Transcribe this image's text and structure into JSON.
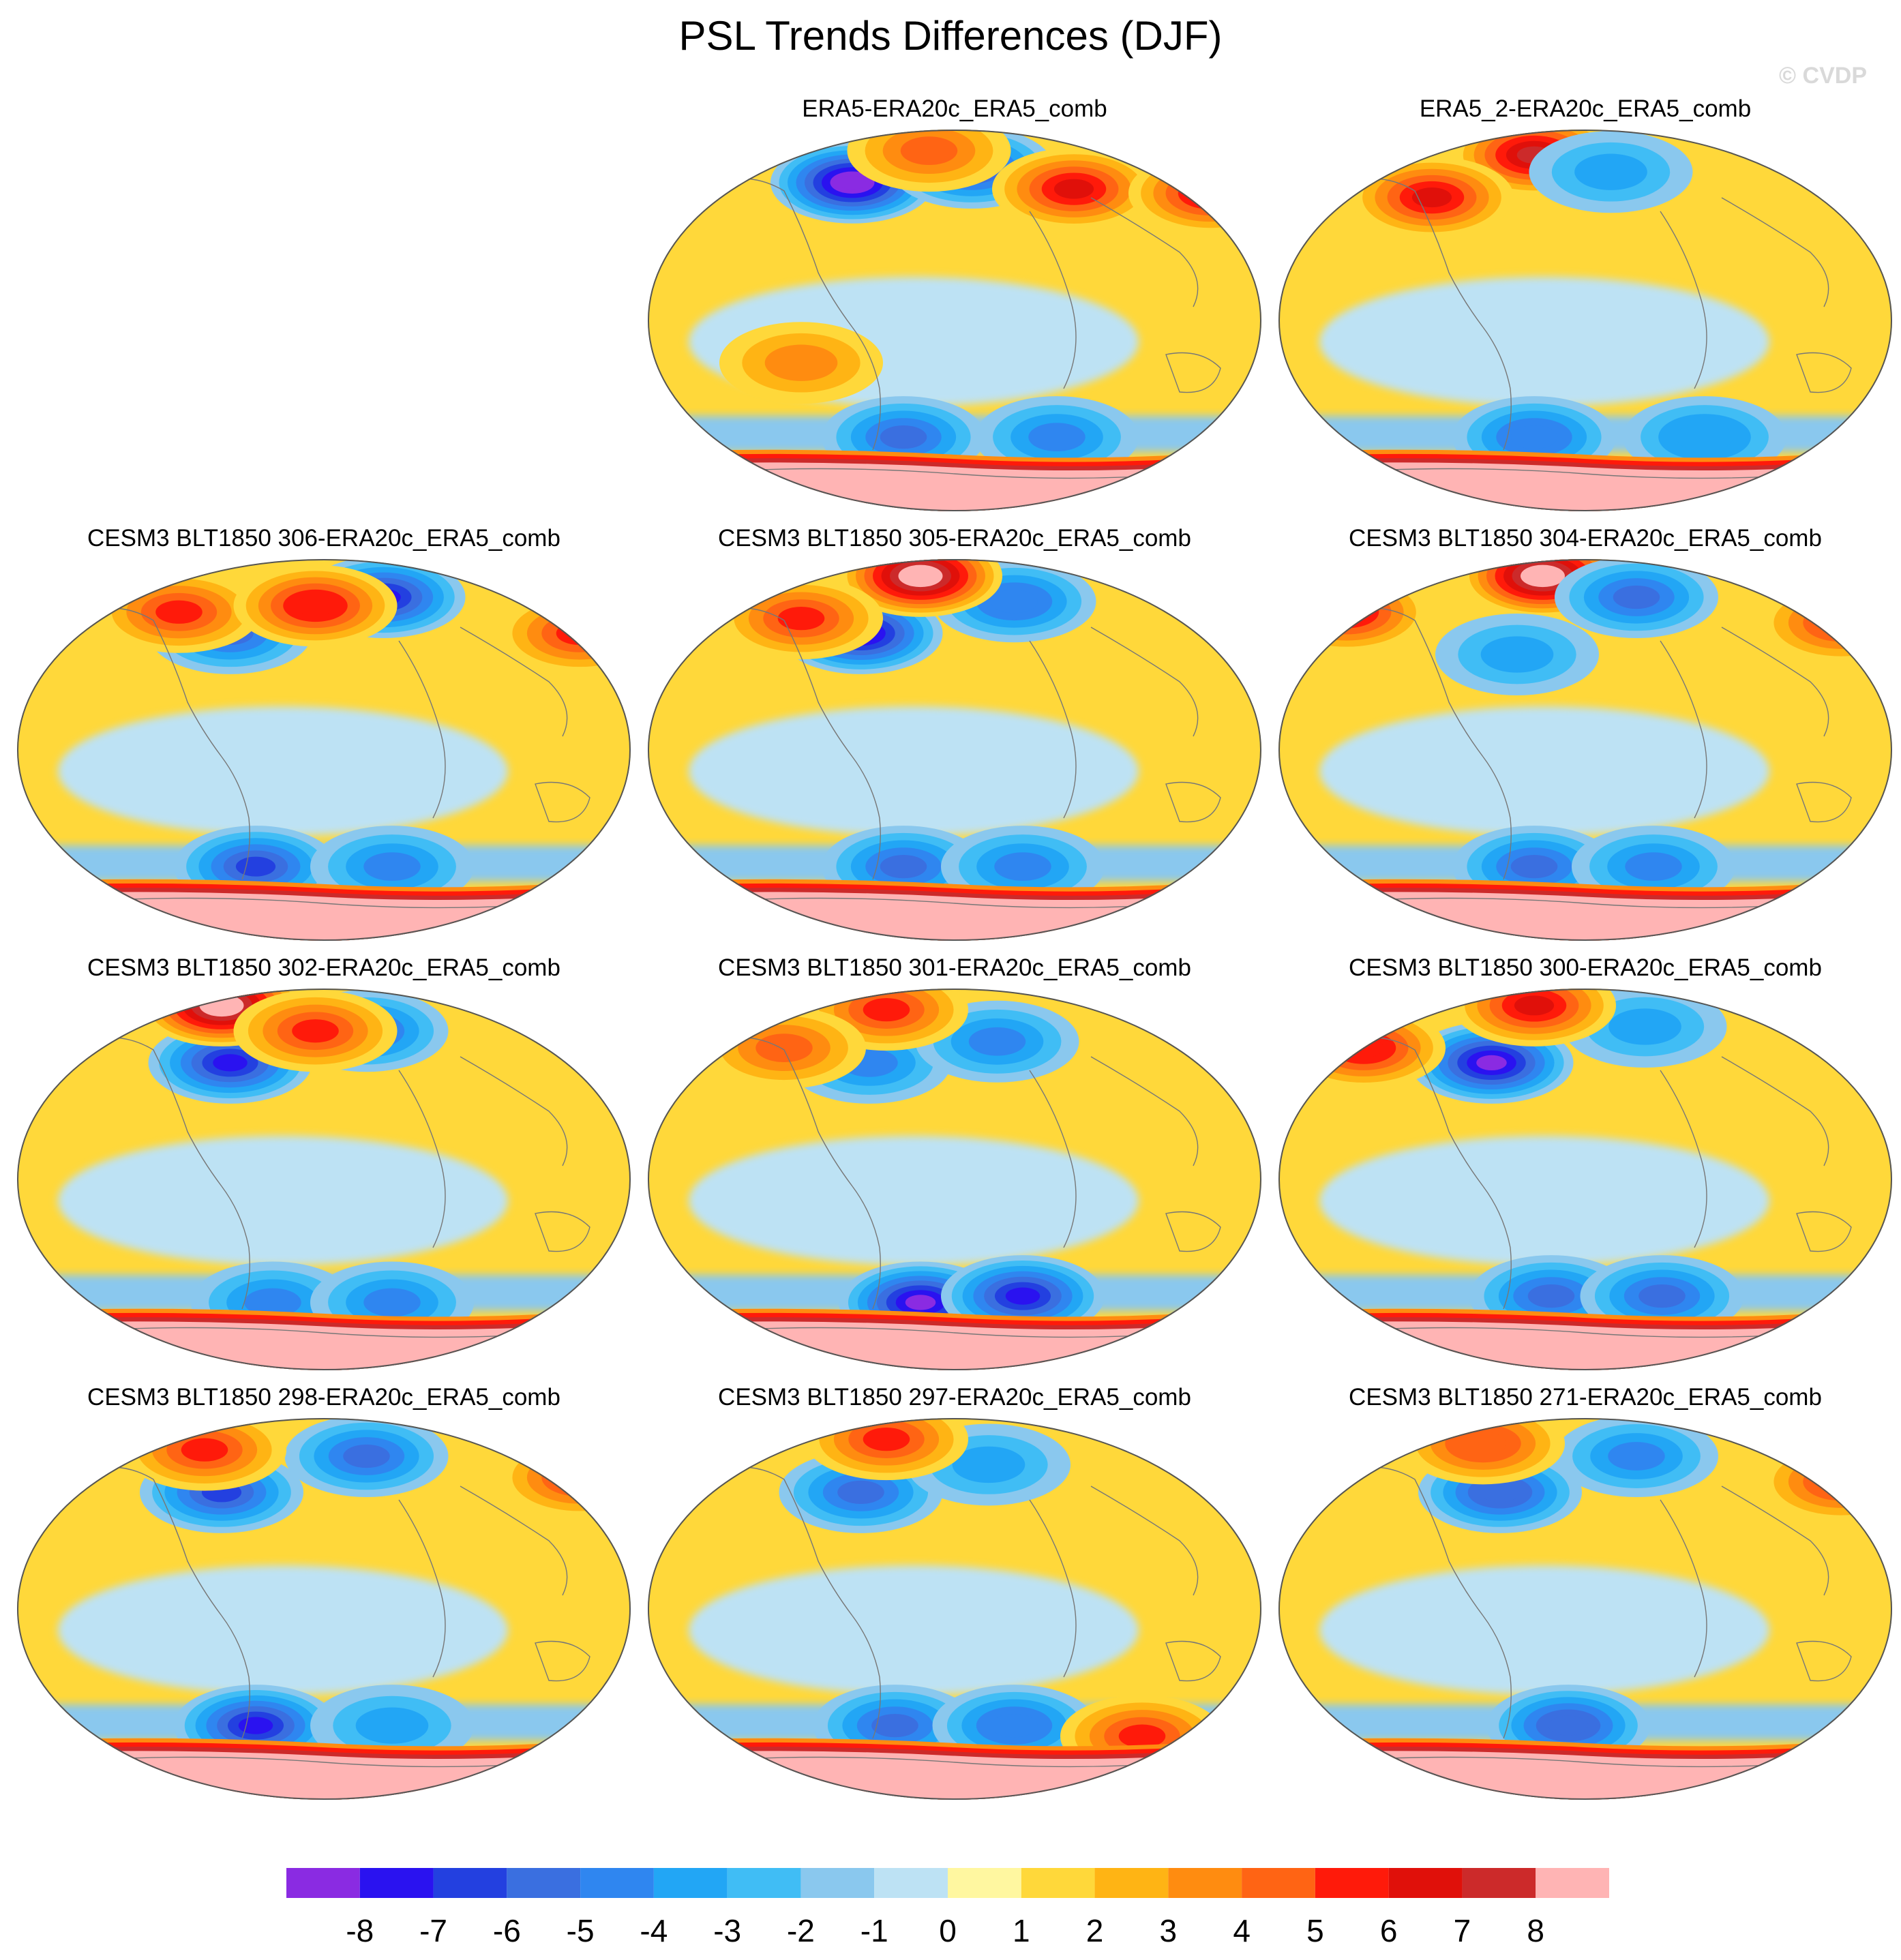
{
  "title": "PSL Trends Differences (DJF)",
  "watermark": "© CVDP",
  "chart_data": {
    "type": "heatmap",
    "variable": "PSL",
    "season": "DJF",
    "projection": "global map (ellipse)",
    "colorbar": {
      "levels": [
        -8,
        -7,
        -6,
        -5,
        -4,
        -3,
        -2,
        -1,
        0,
        1,
        2,
        3,
        4,
        5,
        6,
        7,
        8
      ],
      "labels": [
        "-8",
        "-7",
        "-6",
        "-5",
        "-4",
        "-3",
        "-2",
        "-1",
        "0",
        "1",
        "2",
        "3",
        "4",
        "5",
        "6",
        "7",
        "8"
      ],
      "colors": [
        "#8a2be2",
        "#2a12f0",
        "#2340e0",
        "#3a6fe0",
        "#2f86f0",
        "#22a6f5",
        "#40bdf5",
        "#8ac8ee",
        "#bde2f4",
        "#fff7a0",
        "#ffd83a",
        "#ffb414",
        "#ff8c10",
        "#ff6414",
        "#ff1a0a",
        "#e0100a",
        "#cc2a2a",
        "#ffb4b4"
      ]
    },
    "panels": [
      {
        "title": "ERA5-ERA20c_ERA5_comb",
        "blobs": [
          {
            "lon": -60,
            "lat": 65,
            "v": -8.5
          },
          {
            "lon": 10,
            "lat": 72,
            "v": -6
          },
          {
            "lon": 70,
            "lat": 62,
            "v": 6
          },
          {
            "lon": -15,
            "lat": 80,
            "v": 4
          },
          {
            "lon": 150,
            "lat": 60,
            "v": 6
          },
          {
            "lon": -30,
            "lat": -55,
            "v": -5
          },
          {
            "lon": 60,
            "lat": -55,
            "v": -4
          },
          {
            "lon": -90,
            "lat": -20,
            "v": 3
          }
        ]
      },
      {
        "title": "ERA5_2-ERA20c_ERA5_comb",
        "blobs": [
          {
            "lon": -30,
            "lat": 78,
            "v": 7
          },
          {
            "lon": 15,
            "lat": 70,
            "v": -3
          },
          {
            "lon": -90,
            "lat": 58,
            "v": 6
          },
          {
            "lon": -30,
            "lat": -55,
            "v": -4.5
          },
          {
            "lon": 70,
            "lat": -55,
            "v": -3.5
          }
        ]
      },
      {
        "title": "CESM3 BLT1850 306-ERA20c_ERA5_comb",
        "blobs": [
          {
            "lon": -55,
            "lat": 55,
            "v": -5
          },
          {
            "lon": 35,
            "lat": 72,
            "v": -7
          },
          {
            "lon": -85,
            "lat": 65,
            "v": 5
          },
          {
            "lon": -5,
            "lat": 68,
            "v": 5.5
          },
          {
            "lon": 150,
            "lat": 55,
            "v": 5
          },
          {
            "lon": -40,
            "lat": -55,
            "v": -6
          },
          {
            "lon": 40,
            "lat": -55,
            "v": -4
          }
        ]
      },
      {
        "title": "CESM3 BLT1850 305-ERA20c_ERA5_comb",
        "blobs": [
          {
            "lon": -55,
            "lat": 55,
            "v": -8
          },
          {
            "lon": 35,
            "lat": 70,
            "v": -4.5
          },
          {
            "lon": -20,
            "lat": 82,
            "v": 8.5
          },
          {
            "lon": -90,
            "lat": 62,
            "v": 5
          },
          {
            "lon": -30,
            "lat": -55,
            "v": -5
          },
          {
            "lon": 40,
            "lat": -55,
            "v": -4
          }
        ]
      },
      {
        "title": "CESM3 BLT1850 304-ERA20c_ERA5_comb",
        "blobs": [
          {
            "lon": -25,
            "lat": 82,
            "v": 9
          },
          {
            "lon": 30,
            "lat": 72,
            "v": -5
          },
          {
            "lon": -40,
            "lat": 45,
            "v": -3
          },
          {
            "lon": -140,
            "lat": 65,
            "v": 6
          },
          {
            "lon": 150,
            "lat": 60,
            "v": 5
          },
          {
            "lon": -30,
            "lat": -55,
            "v": -5
          },
          {
            "lon": 40,
            "lat": -55,
            "v": -4
          }
        ]
      },
      {
        "title": "CESM3 BLT1850 302-ERA20c_ERA5_comb",
        "blobs": [
          {
            "lon": -55,
            "lat": 55,
            "v": -7
          },
          {
            "lon": 25,
            "lat": 70,
            "v": -5
          },
          {
            "lon": -60,
            "lat": 82,
            "v": 8.5
          },
          {
            "lon": -5,
            "lat": 70,
            "v": 5
          },
          {
            "lon": -30,
            "lat": -58,
            "v": -4
          },
          {
            "lon": 40,
            "lat": -58,
            "v": -4
          }
        ]
      },
      {
        "title": "CESM3 BLT1850 301-ERA20c_ERA5_comb",
        "blobs": [
          {
            "lon": -50,
            "lat": 55,
            "v": -4
          },
          {
            "lon": 25,
            "lat": 65,
            "v": -4
          },
          {
            "lon": -40,
            "lat": 80,
            "v": 5
          },
          {
            "lon": -20,
            "lat": -58,
            "v": -8
          },
          {
            "lon": 40,
            "lat": -55,
            "v": -7
          },
          {
            "lon": -100,
            "lat": 62,
            "v": 4
          }
        ]
      },
      {
        "title": "CESM3 BLT1850 300-ERA20c_ERA5_comb",
        "blobs": [
          {
            "lon": -55,
            "lat": 55,
            "v": -8
          },
          {
            "lon": 35,
            "lat": 72,
            "v": -3
          },
          {
            "lon": -30,
            "lat": 82,
            "v": 6
          },
          {
            "lon": -130,
            "lat": 62,
            "v": 5.5
          },
          {
            "lon": -20,
            "lat": -55,
            "v": -5
          },
          {
            "lon": 45,
            "lat": -55,
            "v": -5
          }
        ]
      },
      {
        "title": "CESM3 BLT1850 298-ERA20c_ERA5_comb",
        "blobs": [
          {
            "lon": -60,
            "lat": 55,
            "v": -6
          },
          {
            "lon": 25,
            "lat": 72,
            "v": -5
          },
          {
            "lon": -70,
            "lat": 75,
            "v": 5
          },
          {
            "lon": 150,
            "lat": 62,
            "v": 5
          },
          {
            "lon": -40,
            "lat": -55,
            "v": -7
          },
          {
            "lon": 40,
            "lat": -55,
            "v": -3
          }
        ]
      },
      {
        "title": "CESM3 BLT1850 297-ERA20c_ERA5_comb",
        "blobs": [
          {
            "lon": -55,
            "lat": 55,
            "v": -5
          },
          {
            "lon": 20,
            "lat": 68,
            "v": -3
          },
          {
            "lon": -40,
            "lat": 80,
            "v": 5
          },
          {
            "lon": -35,
            "lat": -55,
            "v": -5
          },
          {
            "lon": 35,
            "lat": -55,
            "v": -4.5
          },
          {
            "lon": 110,
            "lat": -60,
            "v": 5
          }
        ]
      },
      {
        "title": "CESM3 BLT1850 271-ERA20c_ERA5_comb",
        "blobs": [
          {
            "lon": -50,
            "lat": 55,
            "v": -5.5
          },
          {
            "lon": 30,
            "lat": 72,
            "v": -4
          },
          {
            "lon": -60,
            "lat": 78,
            "v": 4.5
          },
          {
            "lon": 150,
            "lat": 60,
            "v": 5
          },
          {
            "lon": -10,
            "lat": -55,
            "v": -5.5
          }
        ]
      }
    ]
  }
}
